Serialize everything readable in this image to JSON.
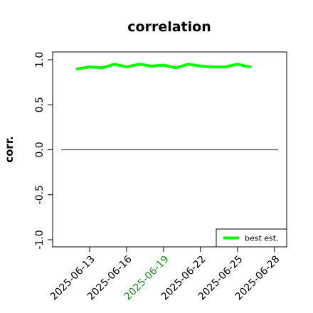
{
  "chart_data": {
    "type": "line",
    "title": "correlation",
    "xlabel": "",
    "ylabel": "corr.",
    "ylim": [
      -1.0,
      1.0
    ],
    "yticks": [
      -1.0,
      -0.5,
      0.0,
      0.5,
      1.0
    ],
    "ytick_labels": [
      "-1.0",
      "-0.5",
      "0.0",
      "0.5",
      "1.0"
    ],
    "xlim": [
      "2025-06-10",
      "2025-06-29"
    ],
    "xticks": [
      "2025-06-13",
      "2025-06-16",
      "2025-06-19",
      "2025-06-22",
      "2025-06-25",
      "2025-06-28"
    ],
    "xtick_colors": [
      "#000000",
      "#000000",
      "#228b22",
      "#000000",
      "#000000",
      "#000000"
    ],
    "x": [
      "2025-06-12",
      "2025-06-13",
      "2025-06-14",
      "2025-06-15",
      "2025-06-16",
      "2025-06-17",
      "2025-06-18",
      "2025-06-19",
      "2025-06-20",
      "2025-06-21",
      "2025-06-22",
      "2025-06-23",
      "2025-06-24",
      "2025-06-25",
      "2025-06-26"
    ],
    "series": [
      {
        "name": "best est.",
        "color": "#00ff00",
        "values": [
          0.9,
          0.92,
          0.91,
          0.95,
          0.92,
          0.95,
          0.93,
          0.94,
          0.91,
          0.95,
          0.93,
          0.92,
          0.92,
          0.95,
          0.92
        ]
      }
    ],
    "reference_line": {
      "y": 0.0,
      "color": "#555555"
    },
    "legend": {
      "position": "bottom-right"
    },
    "grid": false
  }
}
